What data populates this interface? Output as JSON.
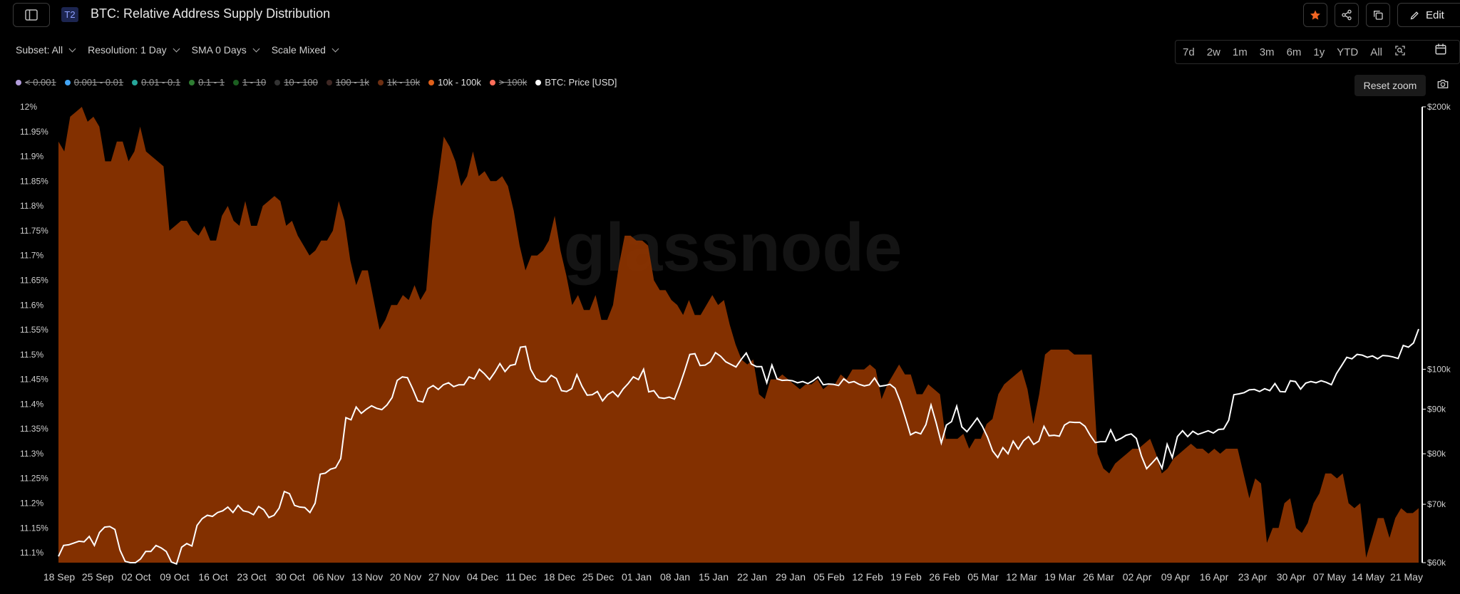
{
  "header": {
    "tier_badge": "T2",
    "title": "BTC: Relative Address Supply Distribution",
    "edit_label": "Edit"
  },
  "controls": {
    "subset": "Subset: All",
    "resolution": "Resolution: 1 Day",
    "sma": "SMA 0 Days",
    "scale": "Scale Mixed"
  },
  "ranges": [
    "7d",
    "2w",
    "1m",
    "3m",
    "6m",
    "1y",
    "YTD",
    "All"
  ],
  "reset_zoom": "Reset zoom",
  "legend": [
    {
      "label": "< 0.001",
      "color": "#b39ddb",
      "active": false
    },
    {
      "label": "0.001 - 0.01",
      "color": "#42a5f5",
      "active": false
    },
    {
      "label": "0.01 - 0.1",
      "color": "#26a69a",
      "active": false
    },
    {
      "label": "0.1 - 1",
      "color": "#2e7d32",
      "active": false
    },
    {
      "label": "1 - 10",
      "color": "#1b5e20",
      "active": false
    },
    {
      "label": "10 - 100",
      "color": "#333333",
      "active": false
    },
    {
      "label": "100 - 1k",
      "color": "#3e2723",
      "active": false
    },
    {
      "label": "1k - 10k",
      "color": "#6d2f12",
      "active": false
    },
    {
      "label": "10k - 100k",
      "color": "#e0601a",
      "active": true
    },
    {
      "label": "> 100k",
      "color": "#ff6e5a",
      "active": false
    },
    {
      "label": "BTC: Price [USD]",
      "color": "#ffffff",
      "active": true
    }
  ],
  "colors": {
    "area_fill": "#8a3300",
    "price_line": "#ffffff",
    "accent": "#f26522"
  },
  "chart_data": {
    "type": "area",
    "watermark": "glassnode",
    "x_labels": [
      "18 Sep",
      "25 Sep",
      "02 Oct",
      "09 Oct",
      "16 Oct",
      "23 Oct",
      "30 Oct",
      "06 Nov",
      "13 Nov",
      "20 Nov",
      "27 Nov",
      "04 Dec",
      "11 Dec",
      "18 Dec",
      "25 Dec",
      "01 Jan",
      "08 Jan",
      "15 Jan",
      "22 Jan",
      "29 Jan",
      "05 Feb",
      "12 Feb",
      "19 Feb",
      "26 Feb",
      "05 Mar",
      "12 Mar",
      "19 Mar",
      "26 Mar",
      "02 Apr",
      "09 Apr",
      "16 Apr",
      "23 Apr",
      "30 Apr",
      "07 May",
      "14 May",
      "21 May"
    ],
    "y_left": {
      "ticks": [
        "12%",
        "11.95%",
        "11.9%",
        "11.85%",
        "11.8%",
        "11.75%",
        "11.7%",
        "11.65%",
        "11.6%",
        "11.55%",
        "11.5%",
        "11.45%",
        "11.4%",
        "11.35%",
        "11.3%",
        "11.25%",
        "11.2%",
        "11.15%",
        "11.1%"
      ],
      "range": [
        11.08,
        12.0
      ]
    },
    "y_right": {
      "ticks": [
        "$200k",
        "$100k",
        "$90k",
        "$80k",
        "$70k",
        "$60k"
      ],
      "scale": "log",
      "range": [
        60000,
        200000
      ]
    },
    "series": [
      {
        "name": "10k - 100k",
        "axis": "left",
        "values": [
          11.93,
          11.91,
          11.98,
          11.99,
          12.0,
          11.97,
          11.98,
          11.96,
          11.89,
          11.89,
          11.93,
          11.93,
          11.89,
          11.91,
          11.96,
          11.91,
          11.9,
          11.89,
          11.88,
          11.75,
          11.76,
          11.77,
          11.77,
          11.75,
          11.74,
          11.76,
          11.73,
          11.73,
          11.78,
          11.8,
          11.77,
          11.76,
          11.81,
          11.76,
          11.76,
          11.8,
          11.81,
          11.82,
          11.81,
          11.76,
          11.77,
          11.74,
          11.72,
          11.7,
          11.71,
          11.73,
          11.73,
          11.75,
          11.81,
          11.77,
          11.69,
          11.64,
          11.67,
          11.67,
          11.61,
          11.55,
          11.57,
          11.6,
          11.6,
          11.62,
          11.61,
          11.64,
          11.61,
          11.63,
          11.77,
          11.85,
          11.94,
          11.92,
          11.89,
          11.84,
          11.86,
          11.91,
          11.86,
          11.87,
          11.85,
          11.85,
          11.86,
          11.84,
          11.79,
          11.72,
          11.67,
          11.7,
          11.7,
          11.71,
          11.73,
          11.78,
          11.71,
          11.66,
          11.6,
          11.62,
          11.59,
          11.59,
          11.62,
          11.57,
          11.57,
          11.6,
          11.68,
          11.74,
          11.74,
          11.73,
          11.73,
          11.72,
          11.65,
          11.63,
          11.63,
          11.61,
          11.6,
          11.58,
          11.61,
          11.58,
          11.58,
          11.6,
          11.62,
          11.6,
          11.61,
          11.56,
          11.52,
          11.49,
          11.48,
          11.49,
          11.42,
          11.41,
          11.45,
          11.45,
          11.46,
          11.45,
          11.44,
          11.43,
          11.44,
          11.44,
          11.45,
          11.43,
          11.44,
          11.44,
          11.46,
          11.45,
          11.47,
          11.47,
          11.47,
          11.48,
          11.47,
          11.41,
          11.44,
          11.46,
          11.48,
          11.46,
          11.46,
          11.42,
          11.42,
          11.44,
          11.43,
          11.42,
          11.33,
          11.33,
          11.33,
          11.34,
          11.31,
          11.33,
          11.33,
          11.36,
          11.37,
          11.42,
          11.44,
          11.45,
          11.46,
          11.47,
          11.43,
          11.36,
          11.42,
          11.5,
          11.51,
          11.51,
          11.51,
          11.51,
          11.5,
          11.5,
          11.5,
          11.5,
          11.3,
          11.27,
          11.26,
          11.28,
          11.29,
          11.3,
          11.31,
          11.31,
          11.32,
          11.33,
          11.3,
          11.26,
          11.27,
          11.29,
          11.3,
          11.31,
          11.32,
          11.31,
          11.31,
          11.3,
          11.31,
          11.3,
          11.31,
          11.31,
          11.31,
          11.26,
          11.21,
          11.25,
          11.24,
          11.12,
          11.15,
          11.15,
          11.2,
          11.21,
          11.15,
          11.14,
          11.16,
          11.2,
          11.22,
          11.26,
          11.26,
          11.25,
          11.26,
          11.2,
          11.19,
          11.2,
          11.09,
          11.13,
          11.17,
          11.17,
          11.13,
          11.17,
          11.19,
          11.18,
          11.18,
          11.19
        ]
      },
      {
        "name": "BTC: Price [USD]",
        "axis": "right",
        "values": [
          61000,
          62800,
          62900,
          63200,
          63500,
          63400,
          64300,
          62800,
          65000,
          65900,
          66000,
          65500,
          62000,
          60200,
          60000,
          60000,
          60600,
          61800,
          61800,
          62800,
          62400,
          61800,
          60100,
          59800,
          62500,
          63100,
          62700,
          66200,
          67400,
          68000,
          67800,
          68500,
          68800,
          69500,
          68500,
          69800,
          68800,
          68600,
          68100,
          69600,
          69000,
          67600,
          68000,
          69300,
          72400,
          72000,
          69800,
          69500,
          69400,
          68500,
          70200,
          75800,
          76000,
          76800,
          77100,
          79000,
          88000,
          87500,
          90500,
          89000,
          90000,
          90800,
          90200,
          89900,
          91000,
          92800,
          97100,
          98000,
          97800,
          95000,
          92000,
          91700,
          95000,
          95800,
          94800,
          96000,
          96500,
          95500,
          96000,
          96000,
          98000,
          97500,
          100000,
          98800,
          97300,
          99200,
          101500,
          99400,
          101000,
          101300,
          106000,
          106200,
          100000,
          97600,
          96800,
          96800,
          98400,
          97600,
          94500,
          94300,
          95000,
          98600,
          95600,
          93400,
          93500,
          94300,
          92000,
          93500,
          94300,
          93000,
          94900,
          96300,
          98000,
          97300,
          100000,
          94200,
          94500,
          92800,
          92600,
          92900,
          92400,
          95700,
          99600,
          104000,
          104200,
          101000,
          101100,
          102000,
          104500,
          103500,
          102000,
          101300,
          100600,
          102600,
          104400,
          101400,
          100700,
          100700,
          96500,
          101100,
          97500,
          97100,
          97200,
          97000,
          96500,
          96800,
          96300,
          97000,
          98000,
          96000,
          96200,
          96100,
          95800,
          97500,
          96500,
          96800,
          96100,
          95700,
          96000,
          97700,
          95600,
          95800,
          96100,
          95100,
          91900,
          88000,
          84100,
          84700,
          84300,
          86400,
          91000,
          86800,
          82300,
          86300,
          87100,
          90700,
          85900,
          84800,
          86300,
          87900,
          86000,
          83600,
          80600,
          79200,
          81300,
          80000,
          82700,
          81000,
          82800,
          83700,
          82000,
          82700,
          86000,
          83900,
          84000,
          83800,
          86300,
          87000,
          86900,
          86900,
          86000,
          84000,
          82400,
          82600,
          82600,
          85200,
          82800,
          83300,
          84000,
          84300,
          83300,
          79500,
          76900,
          78000,
          79200,
          77000,
          82000,
          79200,
          83700,
          85000,
          83700,
          84900,
          84200,
          84600,
          85000,
          84500,
          85300,
          85400,
          87400,
          93500,
          93700,
          94000,
          94700,
          94800,
          94300,
          95000,
          94500,
          96300,
          94300,
          94200,
          97000,
          96800,
          94900,
          96400,
          96800,
          96500,
          97000,
          96600,
          96000,
          98900,
          101000,
          103200,
          102800,
          104000,
          103800,
          103200,
          103600,
          102800,
          103700,
          103600,
          103300,
          102900,
          106500,
          106000,
          107200,
          111200
        ]
      }
    ],
    "grid": false,
    "legend_position": "top-left"
  }
}
